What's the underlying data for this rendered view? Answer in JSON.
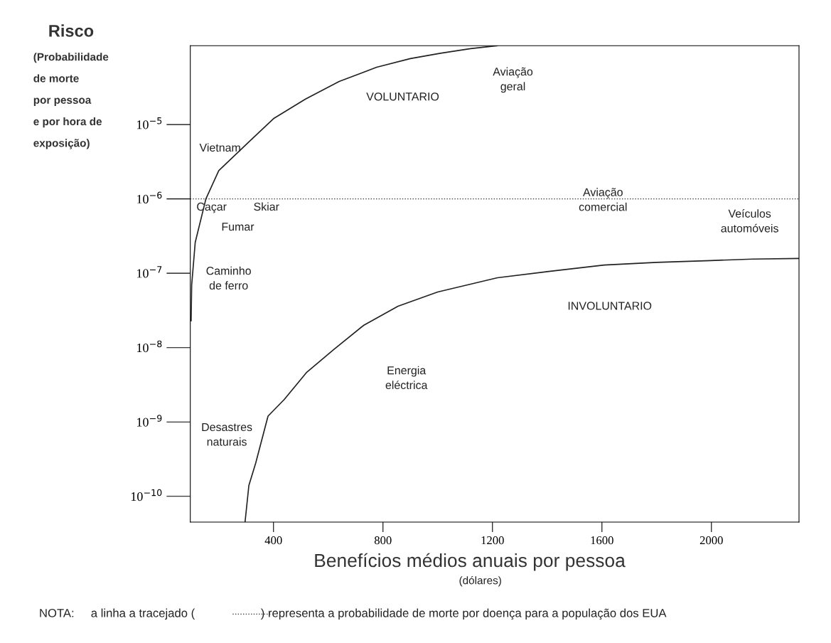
{
  "chart_data": {
    "type": "line",
    "title": "Risco",
    "ylabel": "(Probabilidade\nde morte\npor pessoa\ne por hora de\nexposição)",
    "xlabel": "Benefícios médios anuais por pessoa",
    "series": [
      {
        "color": "#222222",
        "x": [
          99,
          101,
          114,
          153,
          200,
          309,
          400,
          517,
          640,
          777,
          900,
          1010,
          1120,
          1218
        ],
        "values": [
          2.3e-08,
          6.9e-08,
          2.6e-07,
          1e-06,
          2.4e-06,
          5.8e-06,
          1.2e-05,
          2.2e-05,
          3.8e-05,
          5.9e-05,
          7.7e-05,
          9.1e-05,
          0.000105,
          0.000115
        ]
      },
      {
        "color": "#222222",
        "x": [
          296,
          310,
          335,
          380,
          439,
          520,
          621,
          730,
          855,
          1000,
          1218,
          1400,
          1608,
          1800,
          1997,
          2150,
          2319
        ],
        "values": [
          4.5e-11,
          1.4e-10,
          2.8e-10,
          1.2e-09,
          2e-09,
          4.6e-09,
          9.5e-09,
          2e-08,
          3.6e-08,
          5.6e-08,
          8.7e-08,
          1.05e-07,
          1.29e-07,
          1.4e-07,
          1.48e-07,
          1.55e-07,
          1.58e-07
        ]
      }
    ],
    "line_style": "solid",
    "marker": "none",
    "log": "y",
    "xlim": [
      96,
      2320
    ],
    "xticks": [
      400,
      800,
      1200,
      1600,
      2000
    ],
    "ylim": [
      4.5e-11,
      0.000115
    ],
    "yticks": [
      {
        "value": 1e-10,
        "label": "10$^{−10}$"
      },
      {
        "value": 1e-09,
        "label": "10$^{−9}$"
      },
      {
        "value": 1e-08,
        "label": "10$^{−8}$"
      },
      {
        "value": 1e-07,
        "label": "10$^{−7}$"
      },
      {
        "value": 1e-06,
        "label": "10$^{−6}$"
      },
      {
        "value": 1e-05,
        "label": "10$^{−5}$"
      }
    ],
    "ref_lines": [
      {
        "axis": "y",
        "value": 1e-06,
        "line_style": "dotted",
        "color": "#333333"
      }
    ],
    "grid": false,
    "legend": false,
    "annotations": [
      "VOLUNTARIO",
      "Aviação\ngeral",
      "Vietnam",
      "Caçar",
      "Skiar",
      "Fumar",
      "Caminho\nde ferro",
      "Aviação\ncomercial",
      "Veículos\nautomóveis",
      "INVOLUNTARIO",
      "Energia\neléctrica",
      "Desastres\nnaturais",
      "(dólares)",
      "NOTA:     a linha a tracejado (                    ) representa a probabilidade de morte por doença para a população dos EUA"
    ]
  }
}
